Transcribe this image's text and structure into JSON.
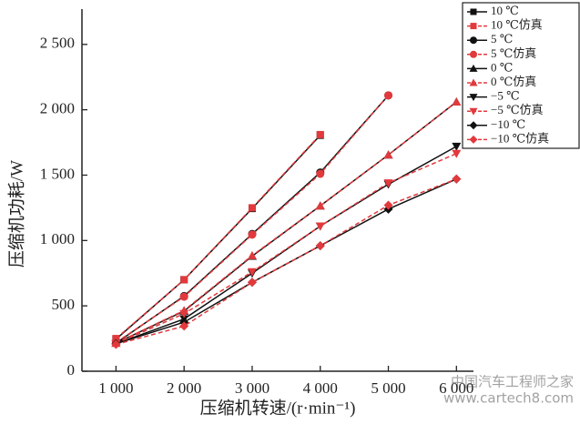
{
  "chart_data": {
    "type": "line",
    "x_label": "压缩机转速/(r·min⁻¹)",
    "y_label": "压缩机功耗/W",
    "xlim": [
      500,
      6250
    ],
    "ylim": [
      0,
      2770
    ],
    "xticks": [
      {
        "value": 1000,
        "label": "1 000"
      },
      {
        "value": 2000,
        "label": "2 000"
      },
      {
        "value": 3000,
        "label": "3 000"
      },
      {
        "value": 4000,
        "label": "4 000"
      },
      {
        "value": 5000,
        "label": "5 000"
      },
      {
        "value": 6000,
        "label": "6 000"
      }
    ],
    "yticks": [
      0,
      500,
      {
        "value": 1000,
        "label": "1 000"
      },
      {
        "value": 1500,
        "label": "1 500"
      },
      {
        "value": 2000,
        "label": "2 000"
      },
      {
        "value": 2500,
        "label": "2 500"
      }
    ],
    "legend": "upper right",
    "series": [
      {
        "name": "10 ℃",
        "color": "#111111",
        "marker": "square",
        "dash": false,
        "x": [
          1000,
          2000,
          3000,
          4000
        ],
        "values": [
          245,
          700,
          1245,
          1805
        ]
      },
      {
        "name": "10 ℃仿真",
        "color": "#e2393d",
        "marker": "square",
        "dash": true,
        "x": [
          1000,
          2000,
          3000,
          4000
        ],
        "values": [
          250,
          700,
          1250,
          1810
        ]
      },
      {
        "name": "5 ℃",
        "color": "#111111",
        "marker": "circle",
        "dash": false,
        "x": [
          1000,
          2000,
          3000,
          4000,
          5000
        ],
        "values": [
          215,
          575,
          1050,
          1520,
          2110
        ]
      },
      {
        "name": "5 ℃仿真",
        "color": "#e2393d",
        "marker": "circle",
        "dash": true,
        "x": [
          1000,
          2000,
          3000,
          4000,
          5000
        ],
        "values": [
          220,
          570,
          1045,
          1510,
          2110
        ]
      },
      {
        "name": "0 ℃",
        "color": "#111111",
        "marker": "triangle-up",
        "dash": false,
        "x": [
          1000,
          2000,
          3000,
          4000,
          5000,
          6000
        ],
        "values": [
          215,
          460,
          880,
          1265,
          1655,
          2060
        ]
      },
      {
        "name": "0 ℃仿真",
        "color": "#e2393d",
        "marker": "triangle-up",
        "dash": true,
        "x": [
          1000,
          2000,
          3000,
          4000,
          5000,
          6000
        ],
        "values": [
          215,
          465,
          885,
          1265,
          1655,
          2060
        ]
      },
      {
        "name": "−5 ℃",
        "color": "#111111",
        "marker": "triangle-down",
        "dash": false,
        "x": [
          1000,
          2000,
          3000,
          4000,
          5000,
          6000
        ],
        "values": [
          210,
          400,
          750,
          1110,
          1430,
          1720
        ]
      },
      {
        "name": "−5 ℃仿真",
        "color": "#e2393d",
        "marker": "triangle-down",
        "dash": true,
        "x": [
          1000,
          2000,
          3000,
          4000,
          5000,
          6000
        ],
        "values": [
          210,
          440,
          760,
          1110,
          1440,
          1665
        ]
      },
      {
        "name": "−10 ℃",
        "color": "#111111",
        "marker": "diamond",
        "dash": false,
        "x": [
          1000,
          2000,
          3000,
          4000,
          5000,
          6000
        ],
        "values": [
          210,
          375,
          680,
          960,
          1240,
          1470
        ]
      },
      {
        "name": "−10 ℃仿真",
        "color": "#e2393d",
        "marker": "diamond",
        "dash": true,
        "x": [
          1000,
          2000,
          3000,
          4000,
          5000,
          6000
        ],
        "values": [
          205,
          345,
          680,
          960,
          1270,
          1470
        ]
      }
    ],
    "watermark": [
      "中国汽车工程师之家",
      "www.cartech8.com"
    ]
  }
}
